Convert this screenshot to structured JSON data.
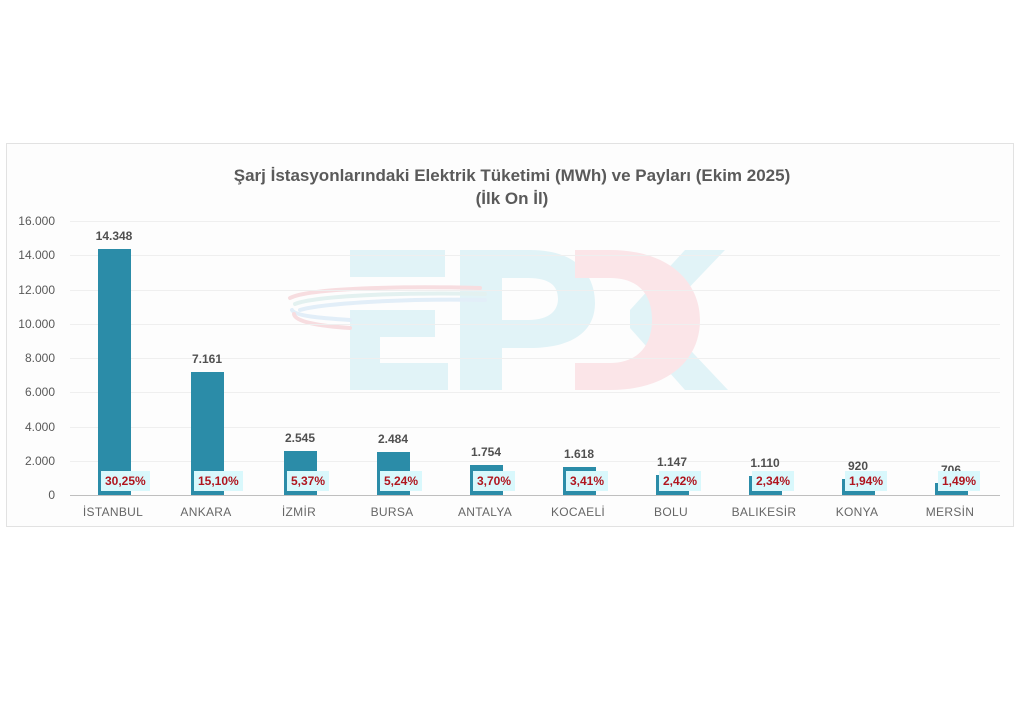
{
  "chart_data": {
    "type": "bar",
    "title": "Şarj İstasyonlarındaki Elektrik Tüketimi (MWh) ve Payları (Ekim 2025)",
    "subtitle": "(İlk On İl)",
    "xlabel": "",
    "ylabel": "",
    "ylim": [
      0,
      16000
    ],
    "yticks": [
      "0",
      "2.000",
      "4.000",
      "6.000",
      "8.000",
      "10.000",
      "12.000",
      "14.000",
      "16.000"
    ],
    "grid": true,
    "legend": "none",
    "categories": [
      "İSTANBUL",
      "ANKARA",
      "İZMİR",
      "BURSA",
      "ANTALYA",
      "KOCAELİ",
      "BOLU",
      "BALIKESİR",
      "KONYA",
      "MERSİN"
    ],
    "series": [
      {
        "name": "Elektrik Tüketimi (MWh)",
        "values": [
          14348,
          7161,
          2545,
          2484,
          1754,
          1618,
          1147,
          1110,
          920,
          706
        ]
      },
      {
        "name": "Pay (%)",
        "values": [
          30.25,
          15.1,
          5.37,
          5.24,
          3.7,
          3.41,
          2.42,
          2.34,
          1.94,
          1.49
        ]
      }
    ],
    "value_labels": [
      "14.348",
      "7.161",
      "2.545",
      "2.484",
      "1.754",
      "1.618",
      "1.147",
      "1.110",
      "920",
      "706"
    ],
    "share_labels": [
      "30,25%",
      "15,10%",
      "5,37%",
      "5,24%",
      "3,70%",
      "3,41%",
      "2,42%",
      "2,34%",
      "1,94%",
      "1,49%"
    ],
    "bar_color": "#2b8ca8",
    "share_label_bg": "#d9f8fc",
    "share_label_color": "#b0151e"
  },
  "watermark": {
    "text": "EPDK"
  }
}
